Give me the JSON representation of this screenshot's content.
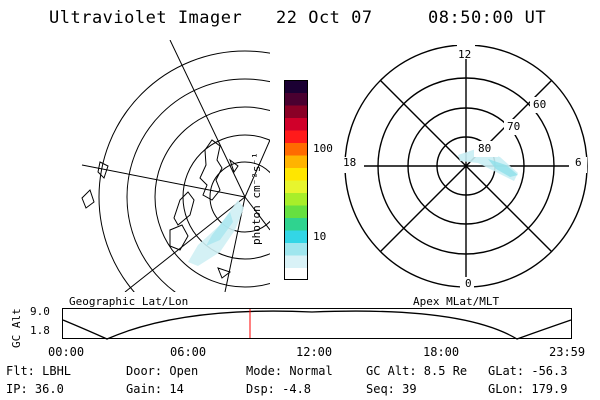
{
  "header": {
    "instrument": "Ultraviolet Imager",
    "date": "22 Oct 07",
    "time": "08:50:00 UT"
  },
  "colorbar": {
    "unit_label": "photon cm⁻²s⁻¹",
    "ticks": [
      "100",
      "10"
    ],
    "colors": [
      "#ffffff",
      "#d9f2f7",
      "#9fe6ee",
      "#33d6e6",
      "#2fd38f",
      "#66e040",
      "#a8ee2a",
      "#e7f52e",
      "#ffe600",
      "#ffb300",
      "#ff6a00",
      "#ff1a1a",
      "#d0002a",
      "#8a0026",
      "#4a0030",
      "#1b0033"
    ]
  },
  "geo_map": {
    "label": "Geographic Lat/Lon"
  },
  "polar_plot": {
    "label": "Apex MLat/MLT",
    "mlt_labels": {
      "top": "12",
      "left": "18",
      "right": "6",
      "bottom": "0"
    },
    "lat_labels": [
      "60",
      "70",
      "80"
    ]
  },
  "altitude_plot": {
    "ylabel": "GC Alt",
    "ytick_top": "9.0",
    "ytick_bottom": "1.8",
    "xticks": [
      "00:00",
      "06:00",
      "12:00",
      "18:00",
      "23:59"
    ],
    "current_time_marker": "08:50",
    "marker_color": "#ff0000"
  },
  "info": {
    "flt": "Flt: LBHL",
    "ip": "IP: 36.0",
    "door": "Door: Open",
    "gain": "Gain: 14",
    "mode": "Mode: Normal",
    "dsp": "Dsp:    -4.8",
    "gc_alt": "GC Alt: 8.5 Re",
    "seq": "Seq: 39",
    "glat": "GLat: -56.3",
    "glon": "GLon: 179.9"
  }
}
